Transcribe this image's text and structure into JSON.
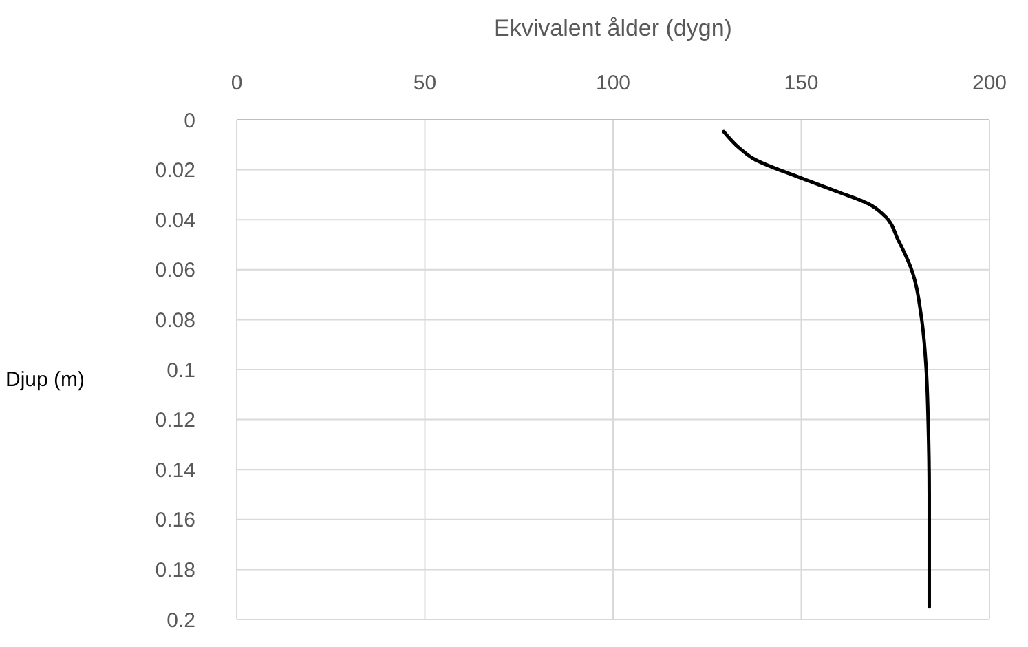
{
  "chart_data": {
    "type": "line",
    "xlabel": "Ekvivalent ålder (dygn)",
    "ylabel": "Djup (m)",
    "xlim": [
      0,
      200
    ],
    "xticks": [
      0,
      50,
      100,
      150,
      200
    ],
    "ylim": [
      0.2,
      0
    ],
    "yticks": [
      0,
      0.02,
      0.04,
      0.06,
      0.08,
      0.1,
      0.12,
      0.14,
      0.16,
      0.18,
      0.2
    ],
    "grid": true,
    "series": [
      {
        "color": "#000000",
        "x": [
          129.4,
          133.6,
          137.2,
          150.1,
          160,
          168.3,
          172.5,
          175.7,
          179.3,
          182,
          183.2,
          183.7,
          184,
          184
        ],
        "values": [
          0.0047,
          0.0114,
          0.0155,
          0.0234,
          0.029,
          0.034,
          0.039,
          0.048,
          0.06,
          0.08,
          0.1,
          0.12,
          0.15,
          0.195
        ]
      }
    ]
  }
}
